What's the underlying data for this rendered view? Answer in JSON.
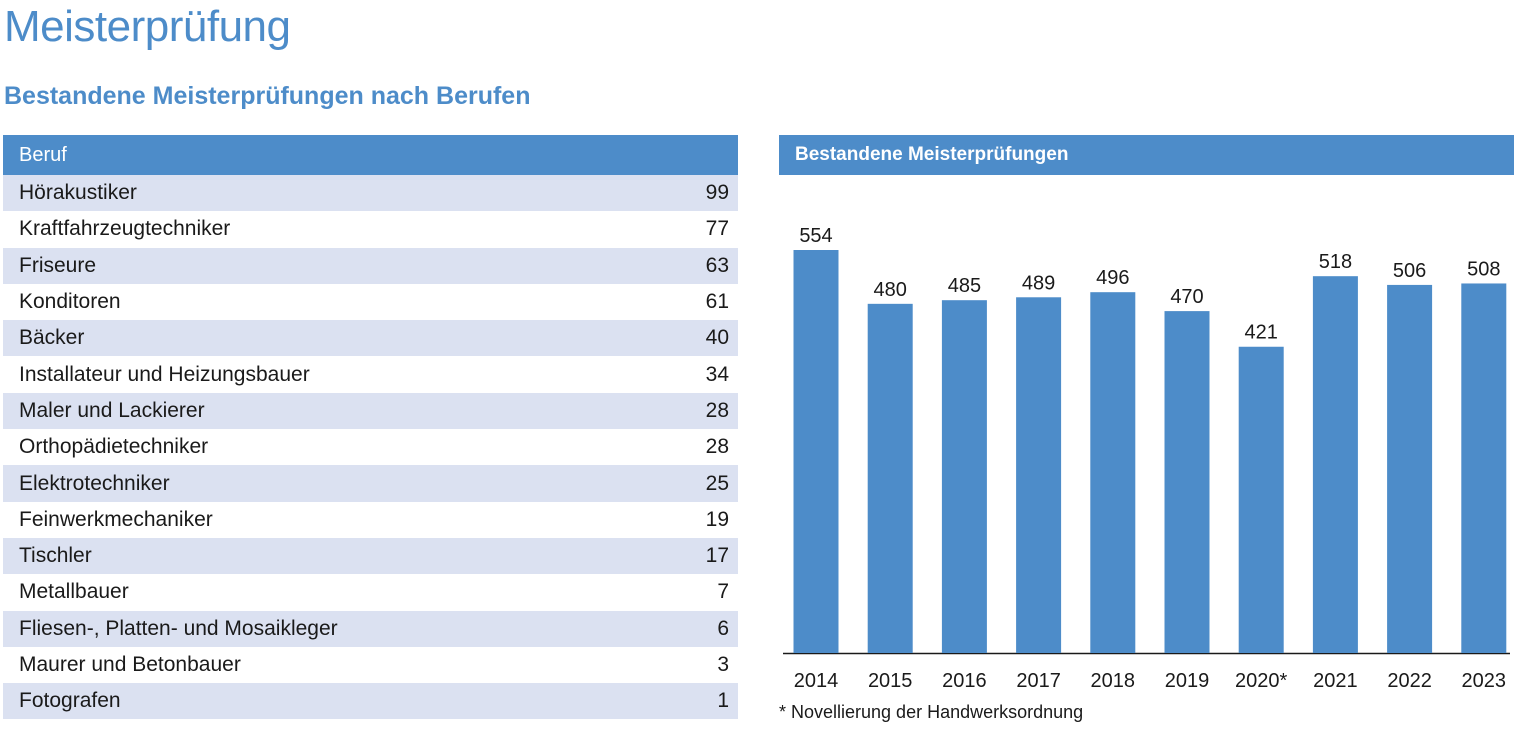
{
  "page": {
    "title": "Meisterprüfung",
    "subtitle": "Bestandene Meisterprüfungen nach Berufen"
  },
  "colors": {
    "accent": "#4d8cc9",
    "row_shade": "#dbe1f1",
    "bar": "#4d8cc9"
  },
  "table": {
    "header": "Beruf",
    "rows": [
      {
        "label": "Hörakustiker",
        "value": "99"
      },
      {
        "label": "Kraftfahrzeugtechniker",
        "value": "77"
      },
      {
        "label": "Friseure",
        "value": "63"
      },
      {
        "label": "Konditoren",
        "value": "61"
      },
      {
        "label": "Bäcker",
        "value": "40"
      },
      {
        "label": "Installateur und Heizungsbauer",
        "value": "34"
      },
      {
        "label": "Maler und Lackierer",
        "value": "28"
      },
      {
        "label": "Orthopädietechniker",
        "value": "28"
      },
      {
        "label": "Elektrotechniker",
        "value": "25"
      },
      {
        "label": "Feinwerkmechaniker",
        "value": "19"
      },
      {
        "label": "Tischler",
        "value": "17"
      },
      {
        "label": "Metallbauer",
        "value": "7"
      },
      {
        "label": "Fliesen-, Platten- und Mosaikleger",
        "value": "6"
      },
      {
        "label": "Maurer und Betonbauer",
        "value": "3"
      },
      {
        "label": "Fotografen",
        "value": "1"
      }
    ]
  },
  "chart_data": {
    "type": "bar",
    "title": "Bestandene Meisterprüfungen",
    "categories": [
      "2014",
      "2015",
      "2016",
      "2017",
      "2018",
      "2019",
      "2020*",
      "2021",
      "2022",
      "2023"
    ],
    "values": [
      554,
      480,
      485,
      489,
      496,
      470,
      421,
      518,
      506,
      508
    ],
    "xlabel": "",
    "ylabel": "",
    "ylim": [
      0,
      554
    ],
    "grid": false,
    "legend": "none",
    "data_labels": true,
    "footnote": "* Novellierung der Handwerksordnung"
  }
}
